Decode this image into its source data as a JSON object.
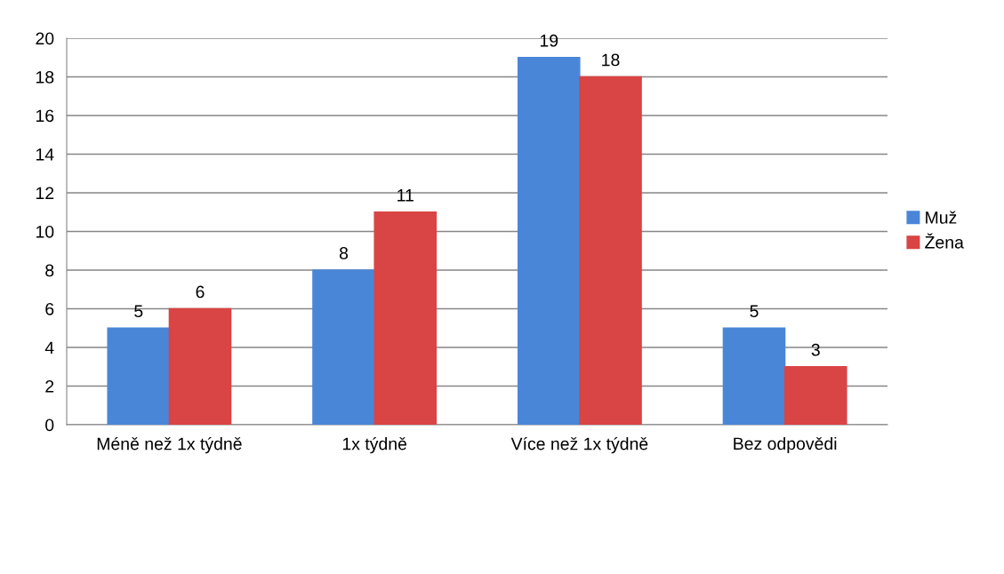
{
  "chart_data": {
    "type": "bar",
    "categories": [
      "Méně než 1x týdně",
      "1x týdně",
      "Více než 1x týdně",
      "Bez odpovědi"
    ],
    "series": [
      {
        "name": "Muž",
        "color": "#4a86d8",
        "values": [
          5,
          8,
          19,
          5
        ]
      },
      {
        "name": "Žena",
        "color": "#d94444",
        "values": [
          6,
          11,
          18,
          3
        ]
      }
    ],
    "ylim": [
      0,
      20
    ],
    "yticks": [
      0,
      2,
      4,
      6,
      8,
      10,
      12,
      14,
      16,
      18,
      20
    ],
    "grid": "y",
    "legend": "right",
    "data_labels": true
  }
}
